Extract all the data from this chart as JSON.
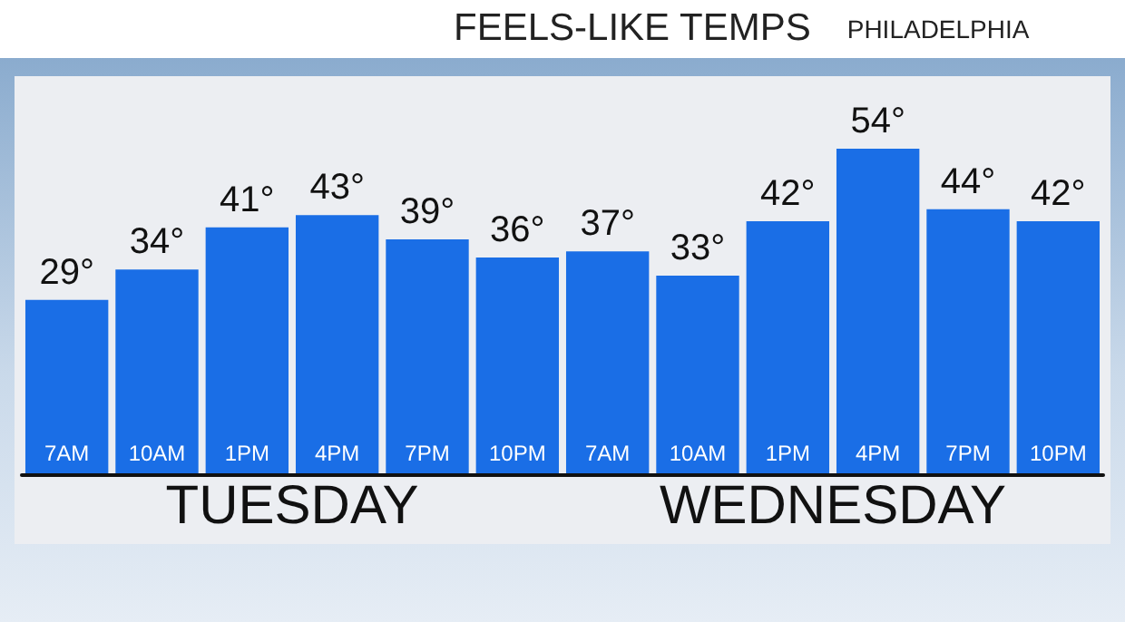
{
  "chart_data": {
    "type": "bar",
    "title": "FEELS-LIKE TEMPS",
    "subtitle": "PHILADELPHIA",
    "categories": [
      "7AM",
      "10AM",
      "1PM",
      "4PM",
      "7PM",
      "10PM",
      "7AM",
      "10AM",
      "1PM",
      "4PM",
      "7PM",
      "10PM"
    ],
    "values": [
      29,
      34,
      41,
      43,
      39,
      36,
      37,
      33,
      42,
      54,
      44,
      42
    ],
    "value_labels": [
      "29°",
      "34°",
      "41°",
      "43°",
      "39°",
      "36°",
      "37°",
      "33°",
      "42°",
      "54°",
      "44°",
      "42°"
    ],
    "color": "#1a6ee6",
    "annotations": [
      "TUESDAY",
      "WEDNESDAY"
    ],
    "grid": false
  }
}
